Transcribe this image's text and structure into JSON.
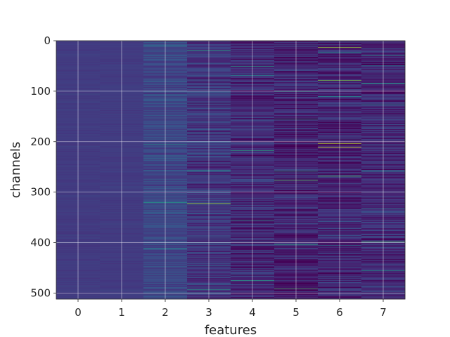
{
  "chart_data": {
    "type": "heatmap",
    "title": "",
    "xlabel": "features",
    "ylabel": "channels",
    "x_categories": [
      "0",
      "1",
      "2",
      "3",
      "4",
      "5",
      "6",
      "7"
    ],
    "y_ticks": [
      0,
      100,
      200,
      300,
      400,
      500
    ],
    "ylim": [
      512,
      0
    ],
    "n_channels": 512,
    "grid": true,
    "colormap": "viridis",
    "background_level": 0.18,
    "column_stats": [
      {
        "feature": "0",
        "mean": 0.18,
        "spread": 0.02
      },
      {
        "feature": "1",
        "mean": 0.18,
        "spread": 0.02
      },
      {
        "feature": "2",
        "mean": 0.22,
        "spread": 0.08
      },
      {
        "feature": "3",
        "mean": 0.17,
        "spread": 0.12
      },
      {
        "feature": "4",
        "mean": 0.12,
        "spread": 0.12
      },
      {
        "feature": "5",
        "mean": 0.1,
        "spread": 0.14
      },
      {
        "feature": "6",
        "mean": 0.11,
        "spread": 0.14
      },
      {
        "feature": "7",
        "mean": 0.12,
        "spread": 0.13
      }
    ],
    "highlights": [
      {
        "feature": "2",
        "channel": 10,
        "value": 0.45
      },
      {
        "feature": "2",
        "channel": 205,
        "value": 0.5
      },
      {
        "feature": "2",
        "channel": 320,
        "value": 0.55
      },
      {
        "feature": "2",
        "channel": 412,
        "value": 0.5
      },
      {
        "feature": "3",
        "channel": 18,
        "value": 0.6
      },
      {
        "feature": "3",
        "channel": 49,
        "value": 0.05
      },
      {
        "feature": "3",
        "channel": 257,
        "value": 0.55
      },
      {
        "feature": "3",
        "channel": 322,
        "value": 0.85
      },
      {
        "feature": "3",
        "channel": 493,
        "value": 0.55
      },
      {
        "feature": "4",
        "channel": 50,
        "value": 0.55
      },
      {
        "feature": "4",
        "channel": 68,
        "value": 0.5
      },
      {
        "feature": "4",
        "channel": 113,
        "value": 0.03
      },
      {
        "feature": "4",
        "channel": 217,
        "value": 0.6
      },
      {
        "feature": "4",
        "channel": 355,
        "value": 0.55
      },
      {
        "feature": "4",
        "channel": 475,
        "value": 0.6
      },
      {
        "feature": "5",
        "channel": 10,
        "value": 0.35
      },
      {
        "feature": "5",
        "channel": 100,
        "value": 0.5
      },
      {
        "feature": "5",
        "channel": 155,
        "value": 0.55
      },
      {
        "feature": "5",
        "channel": 185,
        "value": 0.03
      },
      {
        "feature": "5",
        "channel": 258,
        "value": 0.6
      },
      {
        "feature": "5",
        "channel": 276,
        "value": 0.75
      },
      {
        "feature": "5",
        "channel": 404,
        "value": 0.6
      },
      {
        "feature": "5",
        "channel": 491,
        "value": 0.7
      },
      {
        "feature": "6",
        "channel": 13,
        "value": 0.85
      },
      {
        "feature": "6",
        "channel": 23,
        "value": 0.5
      },
      {
        "feature": "6",
        "channel": 78,
        "value": 0.8
      },
      {
        "feature": "6",
        "channel": 110,
        "value": 0.45
      },
      {
        "feature": "6",
        "channel": 203,
        "value": 0.9
      },
      {
        "feature": "6",
        "channel": 211,
        "value": 0.95
      },
      {
        "feature": "6",
        "channel": 268,
        "value": 0.7
      },
      {
        "feature": "6",
        "channel": 405,
        "value": 0.35
      },
      {
        "feature": "7",
        "channel": 28,
        "value": 0.55
      },
      {
        "feature": "7",
        "channel": 49,
        "value": 0.4
      },
      {
        "feature": "7",
        "channel": 84,
        "value": 0.6
      },
      {
        "feature": "7",
        "channel": 125,
        "value": 0.45
      },
      {
        "feature": "7",
        "channel": 258,
        "value": 0.5
      },
      {
        "feature": "7",
        "channel": 333,
        "value": 0.45
      },
      {
        "feature": "7",
        "channel": 398,
        "value": 0.7
      },
      {
        "feature": "7",
        "channel": 455,
        "value": 0.5
      }
    ]
  }
}
